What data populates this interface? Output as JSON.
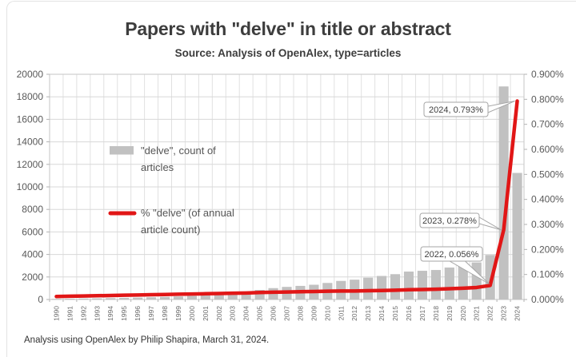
{
  "header": {
    "title": "Papers with \"delve\" in title or abstract",
    "subtitle": "Source: Analysis of OpenAlex, type=articles"
  },
  "footer": {
    "note": "Analysis using OpenAlex by Philip Shapira, March 31, 2024."
  },
  "colors": {
    "bar": "#c1c1c1",
    "line": "#e11616",
    "grid_major": "#d8d8d8",
    "grid_minor": "#e1e1e1",
    "plot_border": "#c6c6c6",
    "tick": "#b3b3b3",
    "axis_text": "#595959",
    "x_text": "#6a6a6a",
    "legend_text": "#555555",
    "annotation_text": "#3f3f3f",
    "annotation_border": "#a6a6a6",
    "title_text": "#3d3d3d"
  },
  "chart_data": {
    "type": "bar",
    "title": "Papers with \"delve\" in title or abstract",
    "subtitle": "Source: Analysis of OpenAlex, type=articles",
    "categories": [
      "1990",
      "1991",
      "1992",
      "1993",
      "1994",
      "1995",
      "1996",
      "1997",
      "1998",
      "1999",
      "2000",
      "2001",
      "2002",
      "2003",
      "2004",
      "2005",
      "2006",
      "2007",
      "2008",
      "2009",
      "2010",
      "2011",
      "2012",
      "2013",
      "2014",
      "2015",
      "2016",
      "2017",
      "2018",
      "2019",
      "2020",
      "2021",
      "2022",
      "2023",
      "2024"
    ],
    "series": [
      {
        "name": "\"delve\", count of articles",
        "type": "bar",
        "axis": "left",
        "values": [
          60,
          70,
          85,
          100,
          120,
          140,
          165,
          195,
          230,
          270,
          320,
          380,
          450,
          530,
          630,
          850,
          1010,
          1120,
          1210,
          1310,
          1470,
          1650,
          1760,
          1940,
          2090,
          2250,
          2480,
          2550,
          2620,
          2840,
          3080,
          3290,
          3950,
          18920,
          11240
        ]
      },
      {
        "name": "% \"delve\" (of annual article count)",
        "type": "line",
        "axis": "right",
        "values": [
          0.012,
          0.013,
          0.014,
          0.015,
          0.016,
          0.017,
          0.018,
          0.019,
          0.02,
          0.021,
          0.022,
          0.023,
          0.024,
          0.025,
          0.026,
          0.028,
          0.029,
          0.03,
          0.031,
          0.032,
          0.033,
          0.034,
          0.034,
          0.035,
          0.036,
          0.037,
          0.039,
          0.04,
          0.041,
          0.043,
          0.045,
          0.048,
          0.056,
          0.278,
          0.793
        ]
      }
    ],
    "left_axis": {
      "min": 0,
      "max": 20000,
      "step": 2000,
      "tick_labels": [
        "0",
        "2000",
        "4000",
        "6000",
        "8000",
        "10000",
        "12000",
        "14000",
        "16000",
        "18000",
        "20000"
      ]
    },
    "right_axis": {
      "min": 0,
      "max": 0.9,
      "step": 0.1,
      "tick_labels": [
        "0.000%",
        "0.100%",
        "0.200%",
        "0.300%",
        "0.400%",
        "0.500%",
        "0.600%",
        "0.700%",
        "0.800%",
        "0.900%"
      ]
    },
    "grid": true,
    "legend_position": "inside-upper-left",
    "legend": [
      {
        "swatch": "bar",
        "lines": [
          "\"delve\", count of",
          "articles"
        ]
      },
      {
        "swatch": "line",
        "lines": [
          "% \"delve\" (of annual",
          "article count)"
        ]
      }
    ],
    "annotations": [
      {
        "text": "2024, 0.793%",
        "year": "2024",
        "value_pct": 0.793
      },
      {
        "text": "2023, 0.278%",
        "year": "2023",
        "value_pct": 0.278
      },
      {
        "text": "2022, 0.056%",
        "year": "2022",
        "value_pct": 0.056
      }
    ]
  }
}
